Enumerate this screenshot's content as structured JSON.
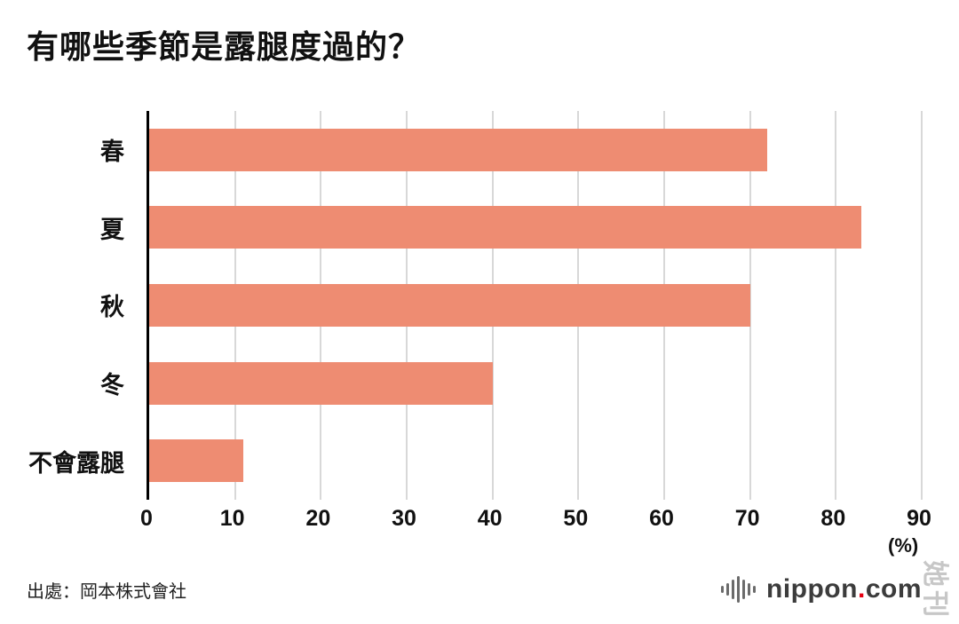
{
  "title": "有哪些季節是露腿度過的？",
  "source": "出處：岡本株式會社",
  "watermark": "她刊",
  "logo": {
    "name": "nippon",
    "dot": ".",
    "tld": "com"
  },
  "chart_data": {
    "type": "bar",
    "orientation": "horizontal",
    "title": "有哪些季節是露腿度過的？",
    "categories": [
      "春",
      "夏",
      "秋",
      "冬",
      "不會露腿"
    ],
    "values": [
      72,
      83,
      70,
      40,
      11
    ],
    "xlabel": "(%)",
    "ylabel": "",
    "xlim": [
      0,
      90
    ],
    "xticks": [
      0,
      10,
      20,
      30,
      40,
      50,
      60,
      70,
      80,
      90
    ],
    "bar_color": "#EE8C72",
    "grid": "vertical",
    "gridline_color": "#d8d8d8",
    "legend": "none"
  }
}
